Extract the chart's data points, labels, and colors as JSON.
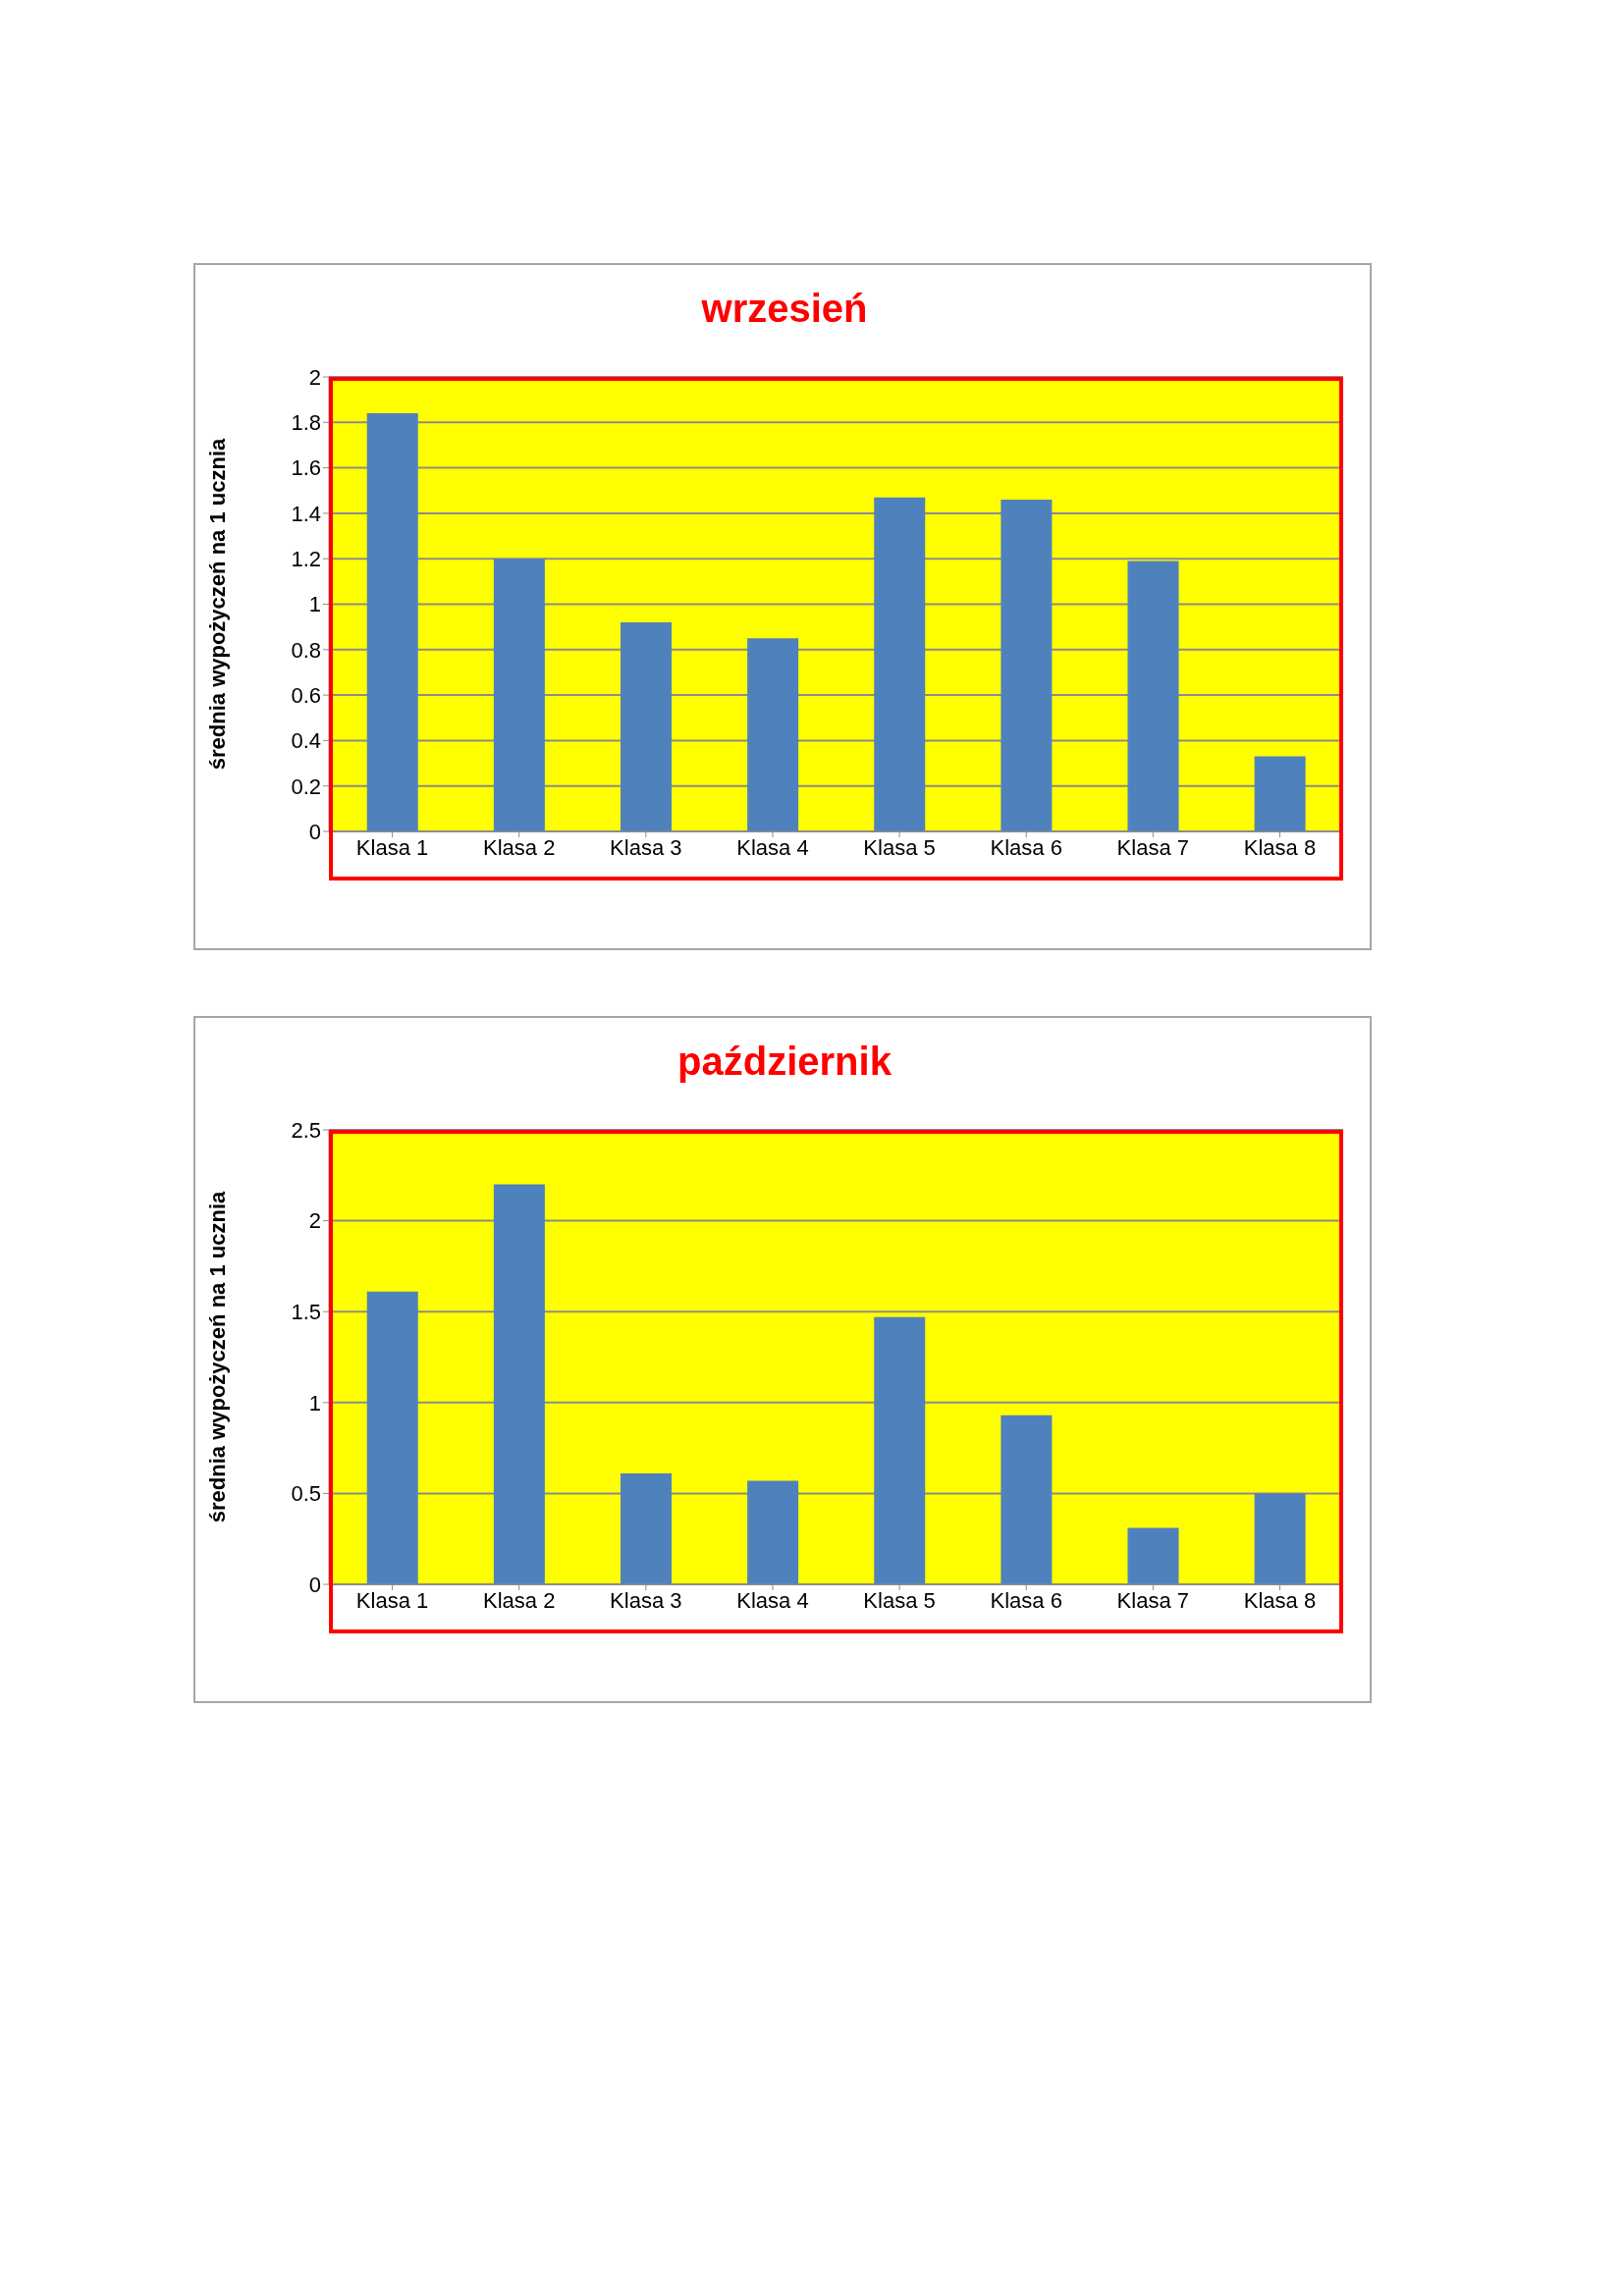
{
  "chart_data": [
    {
      "type": "bar",
      "title": "wrzesień",
      "ylabel": "średnia wypożyczeń na 1 ucznia",
      "categories": [
        "Klasa 1",
        "Klasa 2",
        "Klasa 3",
        "Klasa 4",
        "Klasa 5",
        "Klasa 6",
        "Klasa 7",
        "Klasa 8"
      ],
      "values": [
        1.84,
        1.2,
        0.92,
        0.85,
        1.47,
        1.46,
        1.19,
        0.33
      ],
      "color": "#4f81bd",
      "ylim": [
        0,
        2
      ],
      "yticks": [
        0,
        0.2,
        0.4,
        0.6,
        0.8,
        1,
        1.2,
        1.4,
        1.6,
        1.8,
        2
      ],
      "grid": "y"
    },
    {
      "type": "bar",
      "title": "październik",
      "ylabel": "średnia wypożyczeń na 1 ucznia",
      "categories": [
        "Klasa 1",
        "Klasa 2",
        "Klasa 3",
        "Klasa 4",
        "Klasa 5",
        "Klasa 6",
        "Klasa 7",
        "Klasa 8"
      ],
      "values": [
        1.61,
        2.2,
        0.61,
        0.57,
        1.47,
        0.93,
        0.31,
        0.5
      ],
      "color": "#4f81bd",
      "ylim": [
        0,
        2.5
      ],
      "yticks": [
        0,
        0.5,
        1,
        1.5,
        2,
        2.5
      ],
      "grid": "y"
    }
  ]
}
